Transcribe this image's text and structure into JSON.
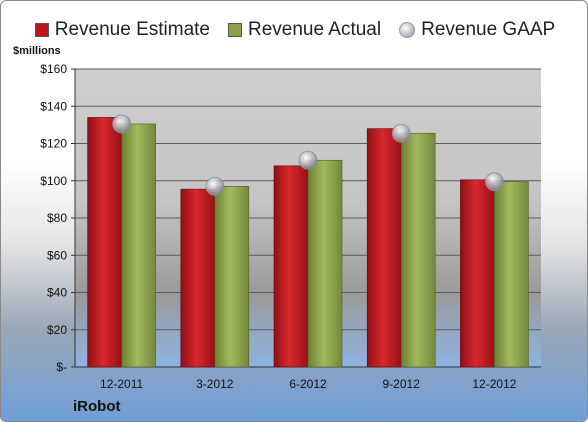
{
  "chart_data": {
    "type": "bar",
    "categories": [
      "12-2011",
      "3-2012",
      "6-2012",
      "9-2012",
      "12-2012"
    ],
    "series": [
      {
        "name": "Revenue Estimate",
        "type": "bar",
        "values": [
          134,
          95.5,
          108,
          128,
          100.5
        ],
        "color": "#c0151c"
      },
      {
        "name": "Revenue Actual",
        "type": "bar",
        "values": [
          130.5,
          97,
          111,
          125.5,
          99.5
        ],
        "color": "#8aa04a"
      },
      {
        "name": "Revenue GAAP",
        "type": "scatter",
        "values": [
          130.5,
          97,
          111,
          125.5,
          99.5
        ],
        "color": "#b8bcc4"
      }
    ],
    "ylabel": "$millions",
    "yticks": [
      "$-",
      "$20",
      "$40",
      "$60",
      "$80",
      "$100",
      "$120",
      "$140",
      "$160"
    ],
    "ylim": [
      0,
      160
    ],
    "grid": true,
    "legend": "top"
  },
  "footer": {
    "brand": "iRobot"
  }
}
